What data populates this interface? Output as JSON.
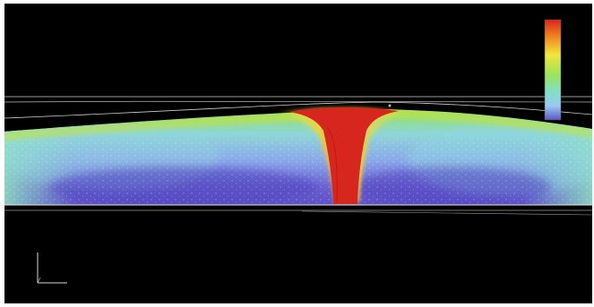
{
  "scene": {
    "background": "#000000",
    "frame": "#ffffff",
    "subject": "simulation-contour-plot"
  },
  "colormap": [
    "#d7261e",
    "#ef7a1f",
    "#f2e63a",
    "#9de35c",
    "#7fe0c8",
    "#9cc8ef",
    "#5a56c9"
  ],
  "legend": {
    "title": "",
    "labels": [
      "",
      "",
      "",
      "",
      "",
      "",
      "",
      "",
      ""
    ]
  },
  "icons": {
    "axis_triad": "axis-triad-icon"
  }
}
